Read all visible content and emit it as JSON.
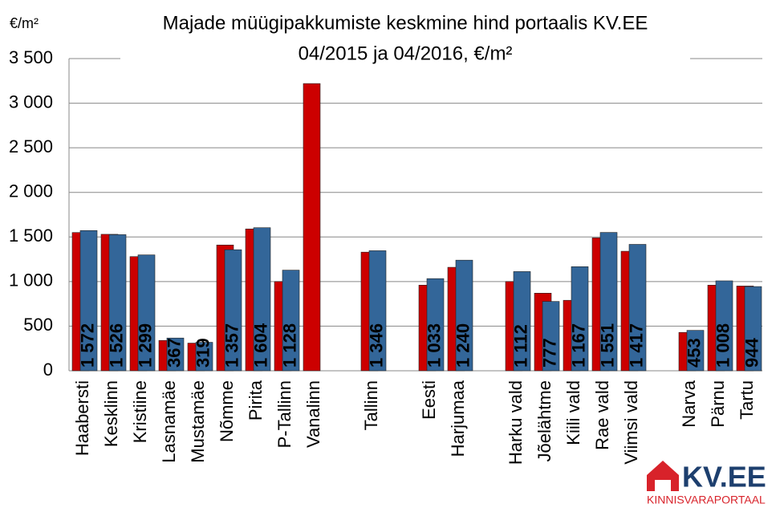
{
  "chart_data": {
    "type": "bar",
    "title": "Majade müügipakkumiste keskmine hind portaalis KV.EE",
    "subtitle": "04/2015 ja 04/2016, €/m²",
    "y_label": "€/m²",
    "categories": [
      "Haabersti",
      "Kesklinn",
      "Kristiine",
      "Lasnamäe",
      "Mustamäe",
      "Nõmme",
      "Pirita",
      "P-Tallinn",
      "Vanalinn",
      null,
      "Tallinn",
      null,
      "Eesti",
      "Harjumaa",
      null,
      "Harku vald",
      "Jõelähtme",
      "Kiili vald",
      "Rae vald",
      "Viimsi vald",
      null,
      "Narva",
      "Pärnu",
      "Tartu"
    ],
    "series": [
      {
        "color": "#cc0000",
        "values": [
          1550,
          1530,
          1280,
          340,
          310,
          1410,
          1590,
          1000,
          3220,
          null,
          1330,
          null,
          960,
          1160,
          null,
          1000,
          870,
          790,
          1490,
          1340,
          null,
          430,
          960,
          950
        ]
      },
      {
        "color": "#336699",
        "values": [
          1572,
          1526,
          1299,
          367,
          319,
          1357,
          1604,
          1128,
          null,
          null,
          1346,
          null,
          1033,
          1240,
          null,
          1112,
          777,
          1167,
          1551,
          1417,
          null,
          453,
          1008,
          944
        ],
        "value_labels": [
          "1 572",
          "1 526",
          "1 299",
          "367",
          "319",
          "1 357",
          "1 604",
          "1 128",
          null,
          null,
          "1 346",
          null,
          "1 033",
          "1 240",
          null,
          "1 112",
          "777",
          "1 167",
          "1 551",
          "1 417",
          null,
          "453",
          "1 008",
          "944"
        ]
      }
    ],
    "ylim": [
      0,
      3500
    ],
    "yticks": [
      0,
      500,
      {
        "value": 1000,
        "label": "1 000"
      },
      {
        "value": 1500,
        "label": "1 500"
      },
      {
        "value": 2000,
        "label": "2 000"
      },
      {
        "value": 2500,
        "label": "2 500"
      },
      {
        "value": 3000,
        "label": "3 000"
      },
      {
        "value": 3500,
        "label": "3 500"
      }
    ],
    "grid": true
  },
  "logo": {
    "name": "KV.EE",
    "tagline": "KINNISVARAPORTAAL"
  }
}
